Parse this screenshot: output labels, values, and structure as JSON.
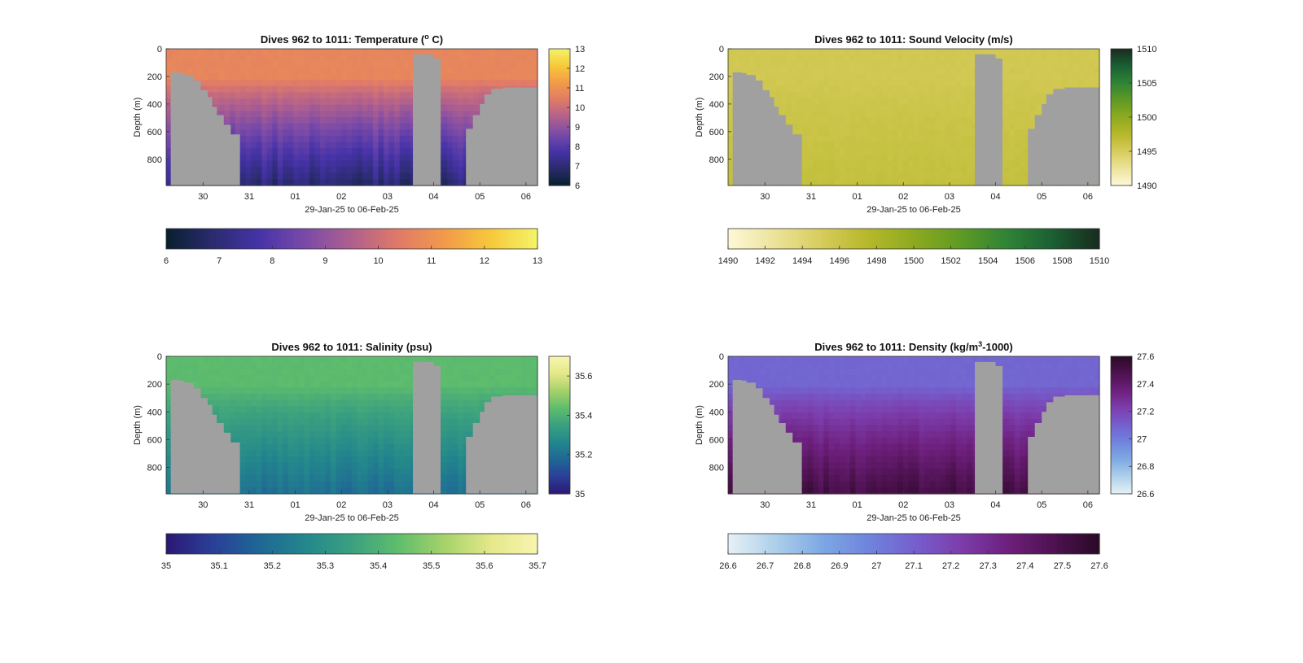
{
  "chart_data": [
    {
      "type": "heatmap",
      "title": "Dives 962 to 1011: Temperature (",
      "title_sup": "o",
      "title_end": " C)",
      "xlabel": "29-Jan-25 to 06-Feb-25",
      "ylabel": "Depth (m)",
      "xticks": [
        "30",
        "31",
        "01",
        "02",
        "03",
        "04",
        "05",
        "06"
      ],
      "yticks": [
        "0",
        "200",
        "400",
        "600",
        "800"
      ],
      "ylim": [
        0,
        990
      ],
      "xlim": [
        29.2,
        37.25
      ],
      "colormap": [
        "#08202e",
        "#2a2b6e",
        "#4633a8",
        "#7a4aa8",
        "#b0608e",
        "#e07a68",
        "#f29a4a",
        "#f7c93a",
        "#f4f46a"
      ],
      "surface_value": 10.7,
      "deep_value": 6.9,
      "right_colorbar": {
        "ticks": [
          "6",
          "7",
          "8",
          "9",
          "10",
          "11",
          "12",
          "13"
        ],
        "range": [
          6,
          13
        ]
      },
      "bottom_colorbar": {
        "ticks": [
          "6",
          "7",
          "8",
          "9",
          "10",
          "11",
          "12",
          "13"
        ],
        "range": [
          6,
          13
        ]
      }
    },
    {
      "type": "heatmap",
      "title": "Dives 962 to 1011: Sound Velocity (m/s)",
      "xlabel": "29-Jan-25 to 06-Feb-25",
      "ylabel": "Depth (m)",
      "xticks": [
        "30",
        "31",
        "01",
        "02",
        "03",
        "04",
        "05",
        "06"
      ],
      "yticks": [
        "0",
        "200",
        "400",
        "600",
        "800"
      ],
      "ylim": [
        0,
        990
      ],
      "xlim": [
        29.2,
        37.25
      ],
      "colormap": [
        "#fdf8d8",
        "#ece39a",
        "#d7cc5c",
        "#b6b82a",
        "#8eaa20",
        "#5f9a24",
        "#2f8436",
        "#1b5f33",
        "#182b1e"
      ],
      "surface_value": 1495.5,
      "deep_value": 1496.5,
      "right_colorbar": {
        "ticks": [
          "1490",
          "1495",
          "1500",
          "1505",
          "1510"
        ],
        "range": [
          1490,
          1510
        ]
      },
      "bottom_colorbar": {
        "ticks": [
          "1490",
          "1492",
          "1494",
          "1496",
          "1498",
          "1500",
          "1502",
          "1504",
          "1506",
          "1508",
          "1510"
        ],
        "range": [
          1490,
          1510
        ]
      }
    },
    {
      "type": "heatmap",
      "title": "Dives 962 to 1011: Salinity (psu)",
      "xlabel": "29-Jan-25 to 06-Feb-25",
      "ylabel": "Depth (m)",
      "xticks": [
        "30",
        "31",
        "01",
        "02",
        "03",
        "04",
        "05",
        "06"
      ],
      "yticks": [
        "0",
        "200",
        "400",
        "600",
        "800"
      ],
      "ylim": [
        0,
        990
      ],
      "xlim": [
        29.2,
        37.25
      ],
      "colormap": [
        "#2a1873",
        "#2a3f98",
        "#1f6796",
        "#23878c",
        "#3ba07f",
        "#5fbd6c",
        "#a6d26a",
        "#e4e88a",
        "#f8f5b0"
      ],
      "surface_value": 35.43,
      "deep_value": 35.2,
      "right_colorbar": {
        "ticks": [
          "35",
          "35.2",
          "35.4",
          "35.6"
        ],
        "range": [
          35,
          35.7
        ]
      },
      "bottom_colorbar": {
        "ticks": [
          "35",
          "35.1",
          "35.2",
          "35.3",
          "35.4",
          "35.5",
          "35.6",
          "35.7"
        ],
        "range": [
          35,
          35.7
        ]
      }
    },
    {
      "type": "heatmap",
      "title": "Dives 962 to 1011: Density (kg/m",
      "title_sup": "3",
      "title_end": "-1000)",
      "xlabel": "29-Jan-25 to 06-Feb-25",
      "ylabel": "Depth (m)",
      "xticks": [
        "30",
        "31",
        "01",
        "02",
        "03",
        "04",
        "05",
        "06"
      ],
      "yticks": [
        "0",
        "200",
        "400",
        "600",
        "800"
      ],
      "ylim": [
        0,
        990
      ],
      "xlim": [
        29.2,
        37.25
      ],
      "colormap": [
        "#e6f2f6",
        "#aed0ea",
        "#7fa9e4",
        "#6f85dc",
        "#7460ce",
        "#7c3eac",
        "#6e207e",
        "#4e1250",
        "#2a0a26"
      ],
      "surface_value": 27.08,
      "deep_value": 27.52,
      "right_colorbar": {
        "ticks": [
          "26.6",
          "26.8",
          "27",
          "27.2",
          "27.4",
          "27.6"
        ],
        "range": [
          26.6,
          27.6
        ]
      },
      "bottom_colorbar": {
        "ticks": [
          "26.6",
          "26.7",
          "26.8",
          "26.9",
          "27",
          "27.1",
          "27.2",
          "27.3",
          "27.4",
          "27.5",
          "27.6"
        ],
        "range": [
          26.6,
          27.6
        ]
      }
    }
  ],
  "terrain": {
    "color": "#a0a0a0",
    "dates": [
      29.2,
      29.3,
      29.5,
      29.6,
      29.8,
      29.95,
      30.1,
      30.2,
      30.3,
      30.45,
      30.6,
      30.8,
      34.2,
      34.55,
      35.0,
      35.15,
      35.5,
      35.7,
      35.85,
      36.0,
      36.1,
      36.25,
      36.5,
      37.25
    ],
    "depths": [
      990,
      170,
      175,
      190,
      230,
      300,
      350,
      420,
      480,
      550,
      620,
      990,
      990,
      40,
      70,
      990,
      990,
      580,
      480,
      400,
      330,
      290,
      280,
      990
    ]
  }
}
